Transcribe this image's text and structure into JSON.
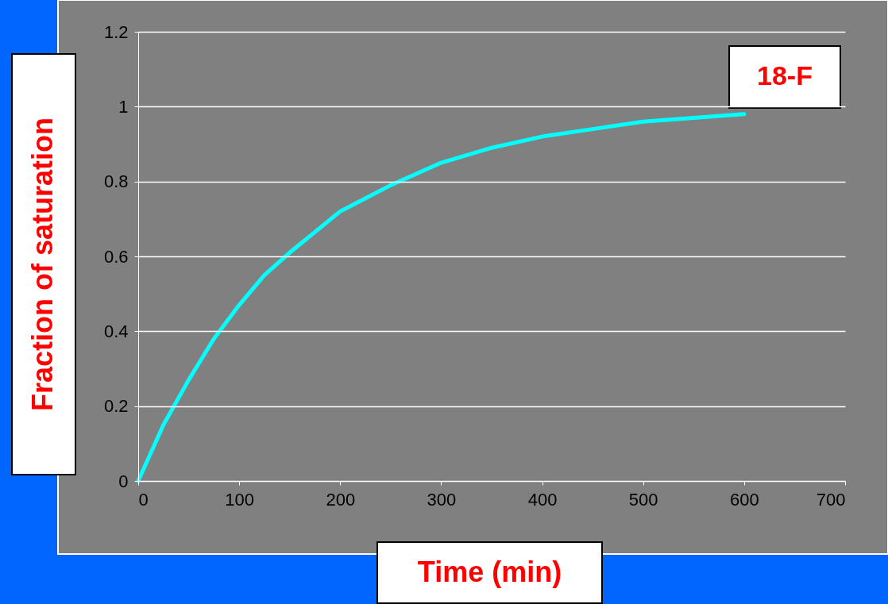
{
  "chart_data": {
    "type": "line",
    "xlabel": "Time (min)",
    "ylabel": "Fraction of saturation",
    "x": [
      0,
      25,
      50,
      75,
      100,
      125,
      150,
      200,
      250,
      300,
      350,
      400,
      450,
      500,
      550,
      600
    ],
    "series": [
      {
        "name": "18-F",
        "color": "#00ffff",
        "values": [
          0,
          0.15,
          0.27,
          0.38,
          0.47,
          0.55,
          0.61,
          0.72,
          0.79,
          0.85,
          0.89,
          0.92,
          0.94,
          0.96,
          0.97,
          0.98
        ]
      }
    ],
    "xlim": [
      0,
      700
    ],
    "xticks": [
      0,
      100,
      200,
      300,
      400,
      500,
      600,
      700
    ],
    "ylim": [
      0,
      1.2
    ],
    "yticks": [
      0,
      0.2,
      0.4,
      0.6,
      0.8,
      1,
      1.2
    ],
    "grid": "y",
    "legend": false,
    "marker": "none",
    "line_style": "solid"
  }
}
